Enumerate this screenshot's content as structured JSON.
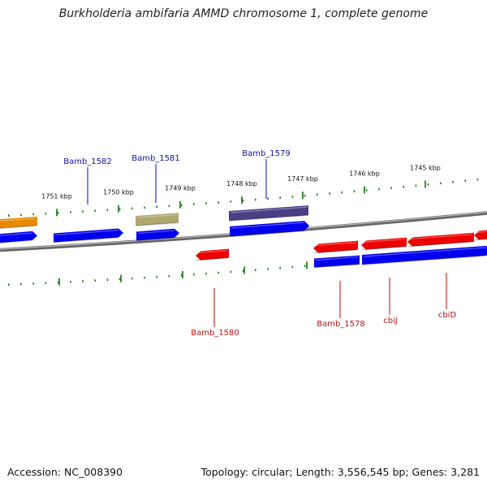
{
  "title": "Burkholderia ambifaria AMMD chromosome 1, complete genome",
  "footer": {
    "accession": "Accession: NC_008390",
    "topology": "Topology: circular; Length: 3,556,545 bp; Genes: 3,281"
  },
  "colors": {
    "plus_strand": "#0000ee",
    "minus_strand": "#ee0000",
    "tick": "#208020",
    "label_plus": "#1010a0",
    "label_minus": "#c01010",
    "orange_feature": "#e88a00",
    "khaki_feature": "#b0a870",
    "purple_feature": "#4a3f86",
    "backbone": "#888888"
  },
  "ticks": [
    "1751 kbp",
    "1750 kbp",
    "1749 kbp",
    "1748 kbp",
    "1747 kbp",
    "1746 kbp",
    "1745 kbp"
  ],
  "genes_top": [
    "Bamb_1582",
    "Bamb_1581",
    "Bamb_1579"
  ],
  "genes_bottom": [
    "Bamb_1580",
    "Bamb_1578",
    "cbiJ",
    "cbiD"
  ]
}
